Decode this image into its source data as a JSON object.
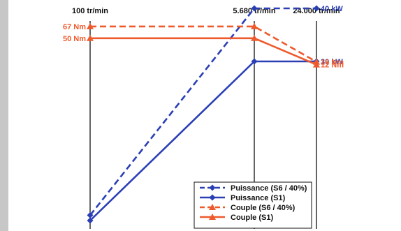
{
  "chart_data": {
    "type": "line",
    "x": [
      "100 tr/min",
      "5.680 tr/min",
      "24.000 tr/min"
    ],
    "xlabel": "",
    "ylabel": "",
    "grid": false,
    "legend_placement": "bottom-right",
    "series": [
      {
        "name": "Puissance (S6 / 40%)",
        "unit": "kW",
        "values": [
          1,
          40,
          40
        ],
        "end_label": "40 kW",
        "color": "#2b3fb5",
        "dash": true,
        "marker": "diamond"
      },
      {
        "name": "Puissance (S1)",
        "unit": "kW",
        "values": [
          0,
          30,
          30
        ],
        "end_label": "30 kW",
        "color": "#2b3fb5",
        "dash": false,
        "marker": "diamond"
      },
      {
        "name": "Couple (S6 / 40%)",
        "unit": "Nm",
        "values": [
          67,
          67,
          16
        ],
        "start_label": "67 Nm",
        "end_label": "16 Nm",
        "color": "#ee5a2c",
        "dash": true,
        "marker": "triangle"
      },
      {
        "name": "Couple (S1)",
        "unit": "Nm",
        "values": [
          50,
          50,
          12
        ],
        "start_label": "50 Nm",
        "end_label": "12 Nm",
        "color": "#ee5a2c",
        "dash": false,
        "marker": "triangle"
      }
    ]
  },
  "colors": {
    "background": "#ffffff",
    "frame": "#c7c7c7",
    "power": "#2b3fb5",
    "torque": "#ee5a2c"
  }
}
